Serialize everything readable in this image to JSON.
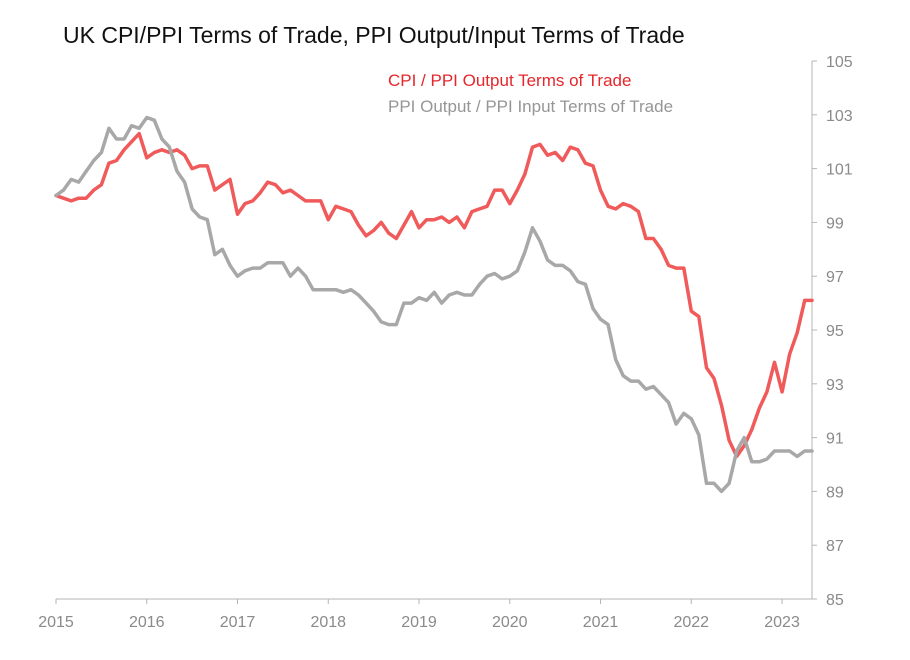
{
  "chart_data": {
    "type": "line",
    "title": "UK CPI/PPI Terms of Trade,  PPI Output/Input Terms of Trade",
    "xlabel": "",
    "ylabel": "",
    "xlim": [
      2015.0,
      2023.33
    ],
    "ylim": [
      85,
      105
    ],
    "y_axis_position": "right",
    "x_ticks": [
      2015,
      2016,
      2017,
      2018,
      2019,
      2020,
      2021,
      2022,
      2023
    ],
    "y_ticks": [
      85,
      87,
      89,
      91,
      93,
      95,
      97,
      99,
      101,
      103,
      105
    ],
    "legend_position": "top-center",
    "series": [
      {
        "name": "CPI / PPI Output Terms of Trade",
        "color": "#f05a5a",
        "x": [
          2015.0,
          2015.083,
          2015.167,
          2015.25,
          2015.333,
          2015.417,
          2015.5,
          2015.583,
          2015.667,
          2015.75,
          2015.833,
          2015.917,
          2016.0,
          2016.083,
          2016.167,
          2016.25,
          2016.333,
          2016.417,
          2016.5,
          2016.583,
          2016.667,
          2016.75,
          2016.833,
          2016.917,
          2017.0,
          2017.083,
          2017.167,
          2017.25,
          2017.333,
          2017.417,
          2017.5,
          2017.583,
          2017.667,
          2017.75,
          2017.833,
          2017.917,
          2018.0,
          2018.083,
          2018.167,
          2018.25,
          2018.333,
          2018.417,
          2018.5,
          2018.583,
          2018.667,
          2018.75,
          2018.833,
          2018.917,
          2019.0,
          2019.083,
          2019.167,
          2019.25,
          2019.333,
          2019.417,
          2019.5,
          2019.583,
          2019.667,
          2019.75,
          2019.833,
          2019.917,
          2020.0,
          2020.083,
          2020.167,
          2020.25,
          2020.333,
          2020.417,
          2020.5,
          2020.583,
          2020.667,
          2020.75,
          2020.833,
          2020.917,
          2021.0,
          2021.083,
          2021.167,
          2021.25,
          2021.333,
          2021.417,
          2021.5,
          2021.583,
          2021.667,
          2021.75,
          2021.833,
          2021.917,
          2022.0,
          2022.083,
          2022.167,
          2022.25,
          2022.333,
          2022.417,
          2022.5,
          2022.583,
          2022.667,
          2022.75,
          2022.833,
          2022.917,
          2023.0,
          2023.083,
          2023.167,
          2023.25,
          2023.33
        ],
        "values": [
          100.0,
          99.9,
          99.8,
          99.9,
          99.9,
          100.2,
          100.4,
          101.2,
          101.3,
          101.7,
          102.0,
          102.3,
          101.4,
          101.6,
          101.7,
          101.6,
          101.7,
          101.5,
          101.0,
          101.1,
          101.1,
          100.2,
          100.4,
          100.6,
          99.3,
          99.7,
          99.8,
          100.1,
          100.5,
          100.4,
          100.1,
          100.2,
          100.0,
          99.8,
          99.8,
          99.8,
          99.1,
          99.6,
          99.5,
          99.4,
          98.9,
          98.5,
          98.7,
          99.0,
          98.6,
          98.4,
          98.9,
          99.4,
          98.8,
          99.1,
          99.1,
          99.2,
          99.0,
          99.2,
          98.8,
          99.4,
          99.5,
          99.6,
          100.2,
          100.2,
          99.7,
          100.2,
          100.8,
          101.8,
          101.9,
          101.5,
          101.6,
          101.3,
          101.8,
          101.7,
          101.2,
          101.1,
          100.2,
          99.6,
          99.5,
          99.7,
          99.6,
          99.4,
          98.4,
          98.4,
          98.0,
          97.4,
          97.3,
          97.3,
          95.7,
          95.5,
          93.6,
          93.2,
          92.2,
          90.9,
          90.3,
          90.7,
          91.3,
          92.1,
          92.7,
          93.8,
          92.7,
          94.1,
          94.9,
          96.1,
          96.1
        ]
      },
      {
        "name": "PPI Output / PPI Input Terms of Trade",
        "color": "#a8a8a8",
        "x": [
          2015.0,
          2015.083,
          2015.167,
          2015.25,
          2015.333,
          2015.417,
          2015.5,
          2015.583,
          2015.667,
          2015.75,
          2015.833,
          2015.917,
          2016.0,
          2016.083,
          2016.167,
          2016.25,
          2016.333,
          2016.417,
          2016.5,
          2016.583,
          2016.667,
          2016.75,
          2016.833,
          2016.917,
          2017.0,
          2017.083,
          2017.167,
          2017.25,
          2017.333,
          2017.417,
          2017.5,
          2017.583,
          2017.667,
          2017.75,
          2017.833,
          2017.917,
          2018.0,
          2018.083,
          2018.167,
          2018.25,
          2018.333,
          2018.417,
          2018.5,
          2018.583,
          2018.667,
          2018.75,
          2018.833,
          2018.917,
          2019.0,
          2019.083,
          2019.167,
          2019.25,
          2019.333,
          2019.417,
          2019.5,
          2019.583,
          2019.667,
          2019.75,
          2019.833,
          2019.917,
          2020.0,
          2020.083,
          2020.167,
          2020.25,
          2020.333,
          2020.417,
          2020.5,
          2020.583,
          2020.667,
          2020.75,
          2020.833,
          2020.917,
          2021.0,
          2021.083,
          2021.167,
          2021.25,
          2021.333,
          2021.417,
          2021.5,
          2021.583,
          2021.667,
          2021.75,
          2021.833,
          2021.917,
          2022.0,
          2022.083,
          2022.167,
          2022.25,
          2022.333,
          2022.417,
          2022.5,
          2022.583,
          2022.667,
          2022.75,
          2022.833,
          2022.917,
          2023.0,
          2023.083,
          2023.167,
          2023.25,
          2023.33
        ],
        "values": [
          100.0,
          100.2,
          100.6,
          100.5,
          100.9,
          101.3,
          101.6,
          102.5,
          102.1,
          102.1,
          102.6,
          102.5,
          102.9,
          102.8,
          102.1,
          101.8,
          100.9,
          100.5,
          99.5,
          99.2,
          99.1,
          97.8,
          98.0,
          97.4,
          97.0,
          97.2,
          97.3,
          97.3,
          97.5,
          97.5,
          97.5,
          97.0,
          97.3,
          97.0,
          96.5,
          96.5,
          96.5,
          96.5,
          96.4,
          96.5,
          96.3,
          96.0,
          95.7,
          95.3,
          95.2,
          95.2,
          96.0,
          96.0,
          96.2,
          96.1,
          96.4,
          96.0,
          96.3,
          96.4,
          96.3,
          96.3,
          96.7,
          97.0,
          97.1,
          96.9,
          97.0,
          97.2,
          97.9,
          98.8,
          98.3,
          97.6,
          97.4,
          97.4,
          97.2,
          96.8,
          96.7,
          95.8,
          95.4,
          95.2,
          93.9,
          93.3,
          93.1,
          93.1,
          92.8,
          92.9,
          92.6,
          92.3,
          91.5,
          91.9,
          91.7,
          91.1,
          89.3,
          89.3,
          89.0,
          89.3,
          90.5,
          91.0,
          90.1,
          90.1,
          90.2,
          90.5,
          90.5,
          90.5,
          90.3,
          90.5,
          90.5
        ]
      }
    ]
  }
}
